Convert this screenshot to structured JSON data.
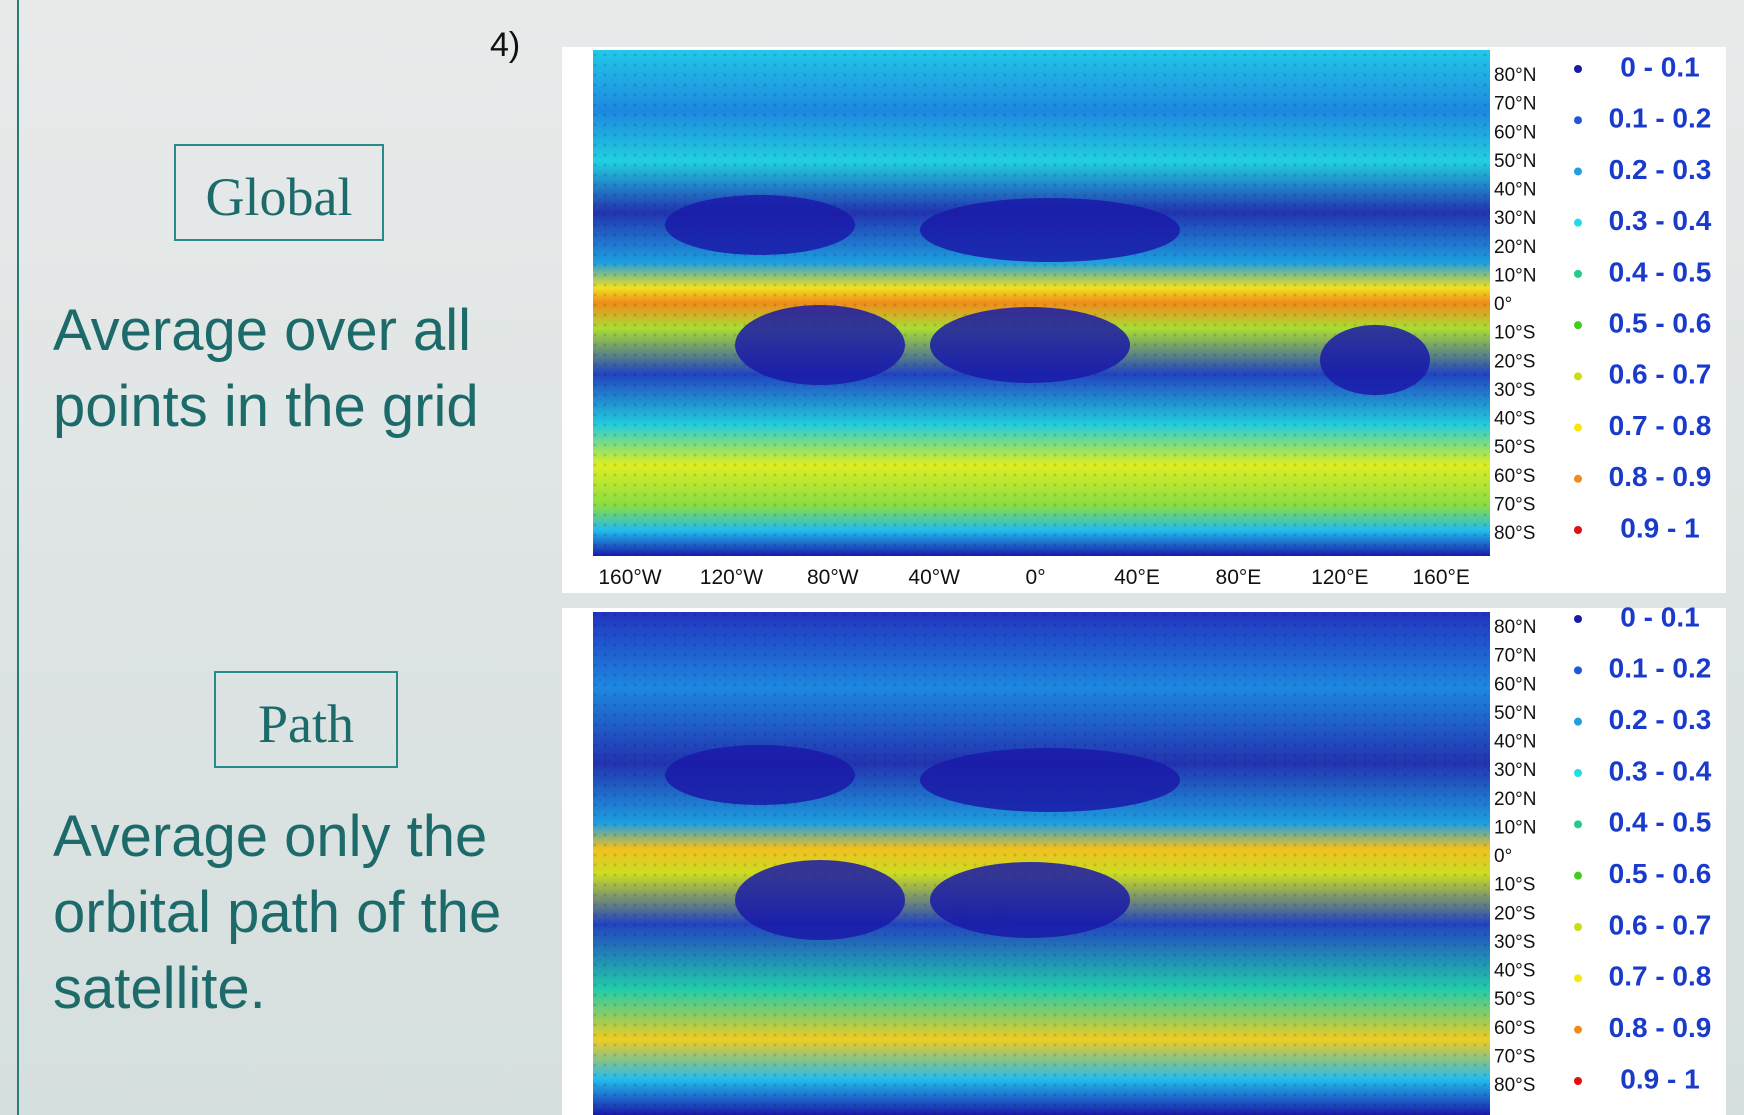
{
  "slide_number": "4)",
  "panels": [
    {
      "label": "Global",
      "description": [
        "Average over all",
        "points in the grid"
      ],
      "map": {
        "latitude_labels": [
          "80°N",
          "70°N",
          "60°N",
          "50°N",
          "40°N",
          "30°N",
          "20°N",
          "10°N",
          "0°",
          "10°S",
          "20°S",
          "30°S",
          "40°S",
          "50°S",
          "60°S",
          "70°S",
          "80°S"
        ],
        "longitude_labels": [
          "160°W",
          "120°W",
          "80°W",
          "40°W",
          "0°",
          "40°E",
          "80°E",
          "120°E",
          "160°E"
        ],
        "legend": [
          {
            "label": "0 - 0.1",
            "color": "#1a1aa8"
          },
          {
            "label": "0.1 - 0.2",
            "color": "#2255dd"
          },
          {
            "label": "0.2 - 0.3",
            "color": "#1e9fe0"
          },
          {
            "label": "0.3 - 0.4",
            "color": "#22dde8"
          },
          {
            "label": "0.4 - 0.5",
            "color": "#22cc88"
          },
          {
            "label": "0.5 - 0.6",
            "color": "#44cc22"
          },
          {
            "label": "0.6 - 0.7",
            "color": "#ccdd11"
          },
          {
            "label": "0.7 - 0.8",
            "color": "#f5e80a"
          },
          {
            "label": "0.8 - 0.9",
            "color": "#f08c1a"
          },
          {
            "label": "0.9 - 1",
            "color": "#e01010"
          }
        ]
      }
    },
    {
      "label": "Path",
      "description": [
        "Average only the",
        "orbital path of the",
        "satellite."
      ],
      "map": {
        "latitude_labels": [
          "80°N",
          "70°N",
          "60°N",
          "50°N",
          "40°N",
          "30°N",
          "20°N",
          "10°N",
          "0°",
          "10°S",
          "20°S",
          "30°S",
          "40°S",
          "50°S",
          "60°S",
          "70°S",
          "80°S"
        ],
        "legend": [
          {
            "label": "0 - 0.1",
            "color": "#1a1aa8"
          },
          {
            "label": "0.1 - 0.2",
            "color": "#2255dd"
          },
          {
            "label": "0.2 - 0.3",
            "color": "#1e9fe0"
          },
          {
            "label": "0.3 - 0.4",
            "color": "#22dde8"
          },
          {
            "label": "0.4 - 0.5",
            "color": "#22cc88"
          },
          {
            "label": "0.5 - 0.6",
            "color": "#44cc22"
          },
          {
            "label": "0.6 - 0.7",
            "color": "#ccdd11"
          },
          {
            "label": "0.7 - 0.8",
            "color": "#f5e80a"
          },
          {
            "label": "0.8 - 0.9",
            "color": "#f08c1a"
          },
          {
            "label": "0.9 - 1",
            "color": "#e01010"
          }
        ]
      }
    }
  ]
}
